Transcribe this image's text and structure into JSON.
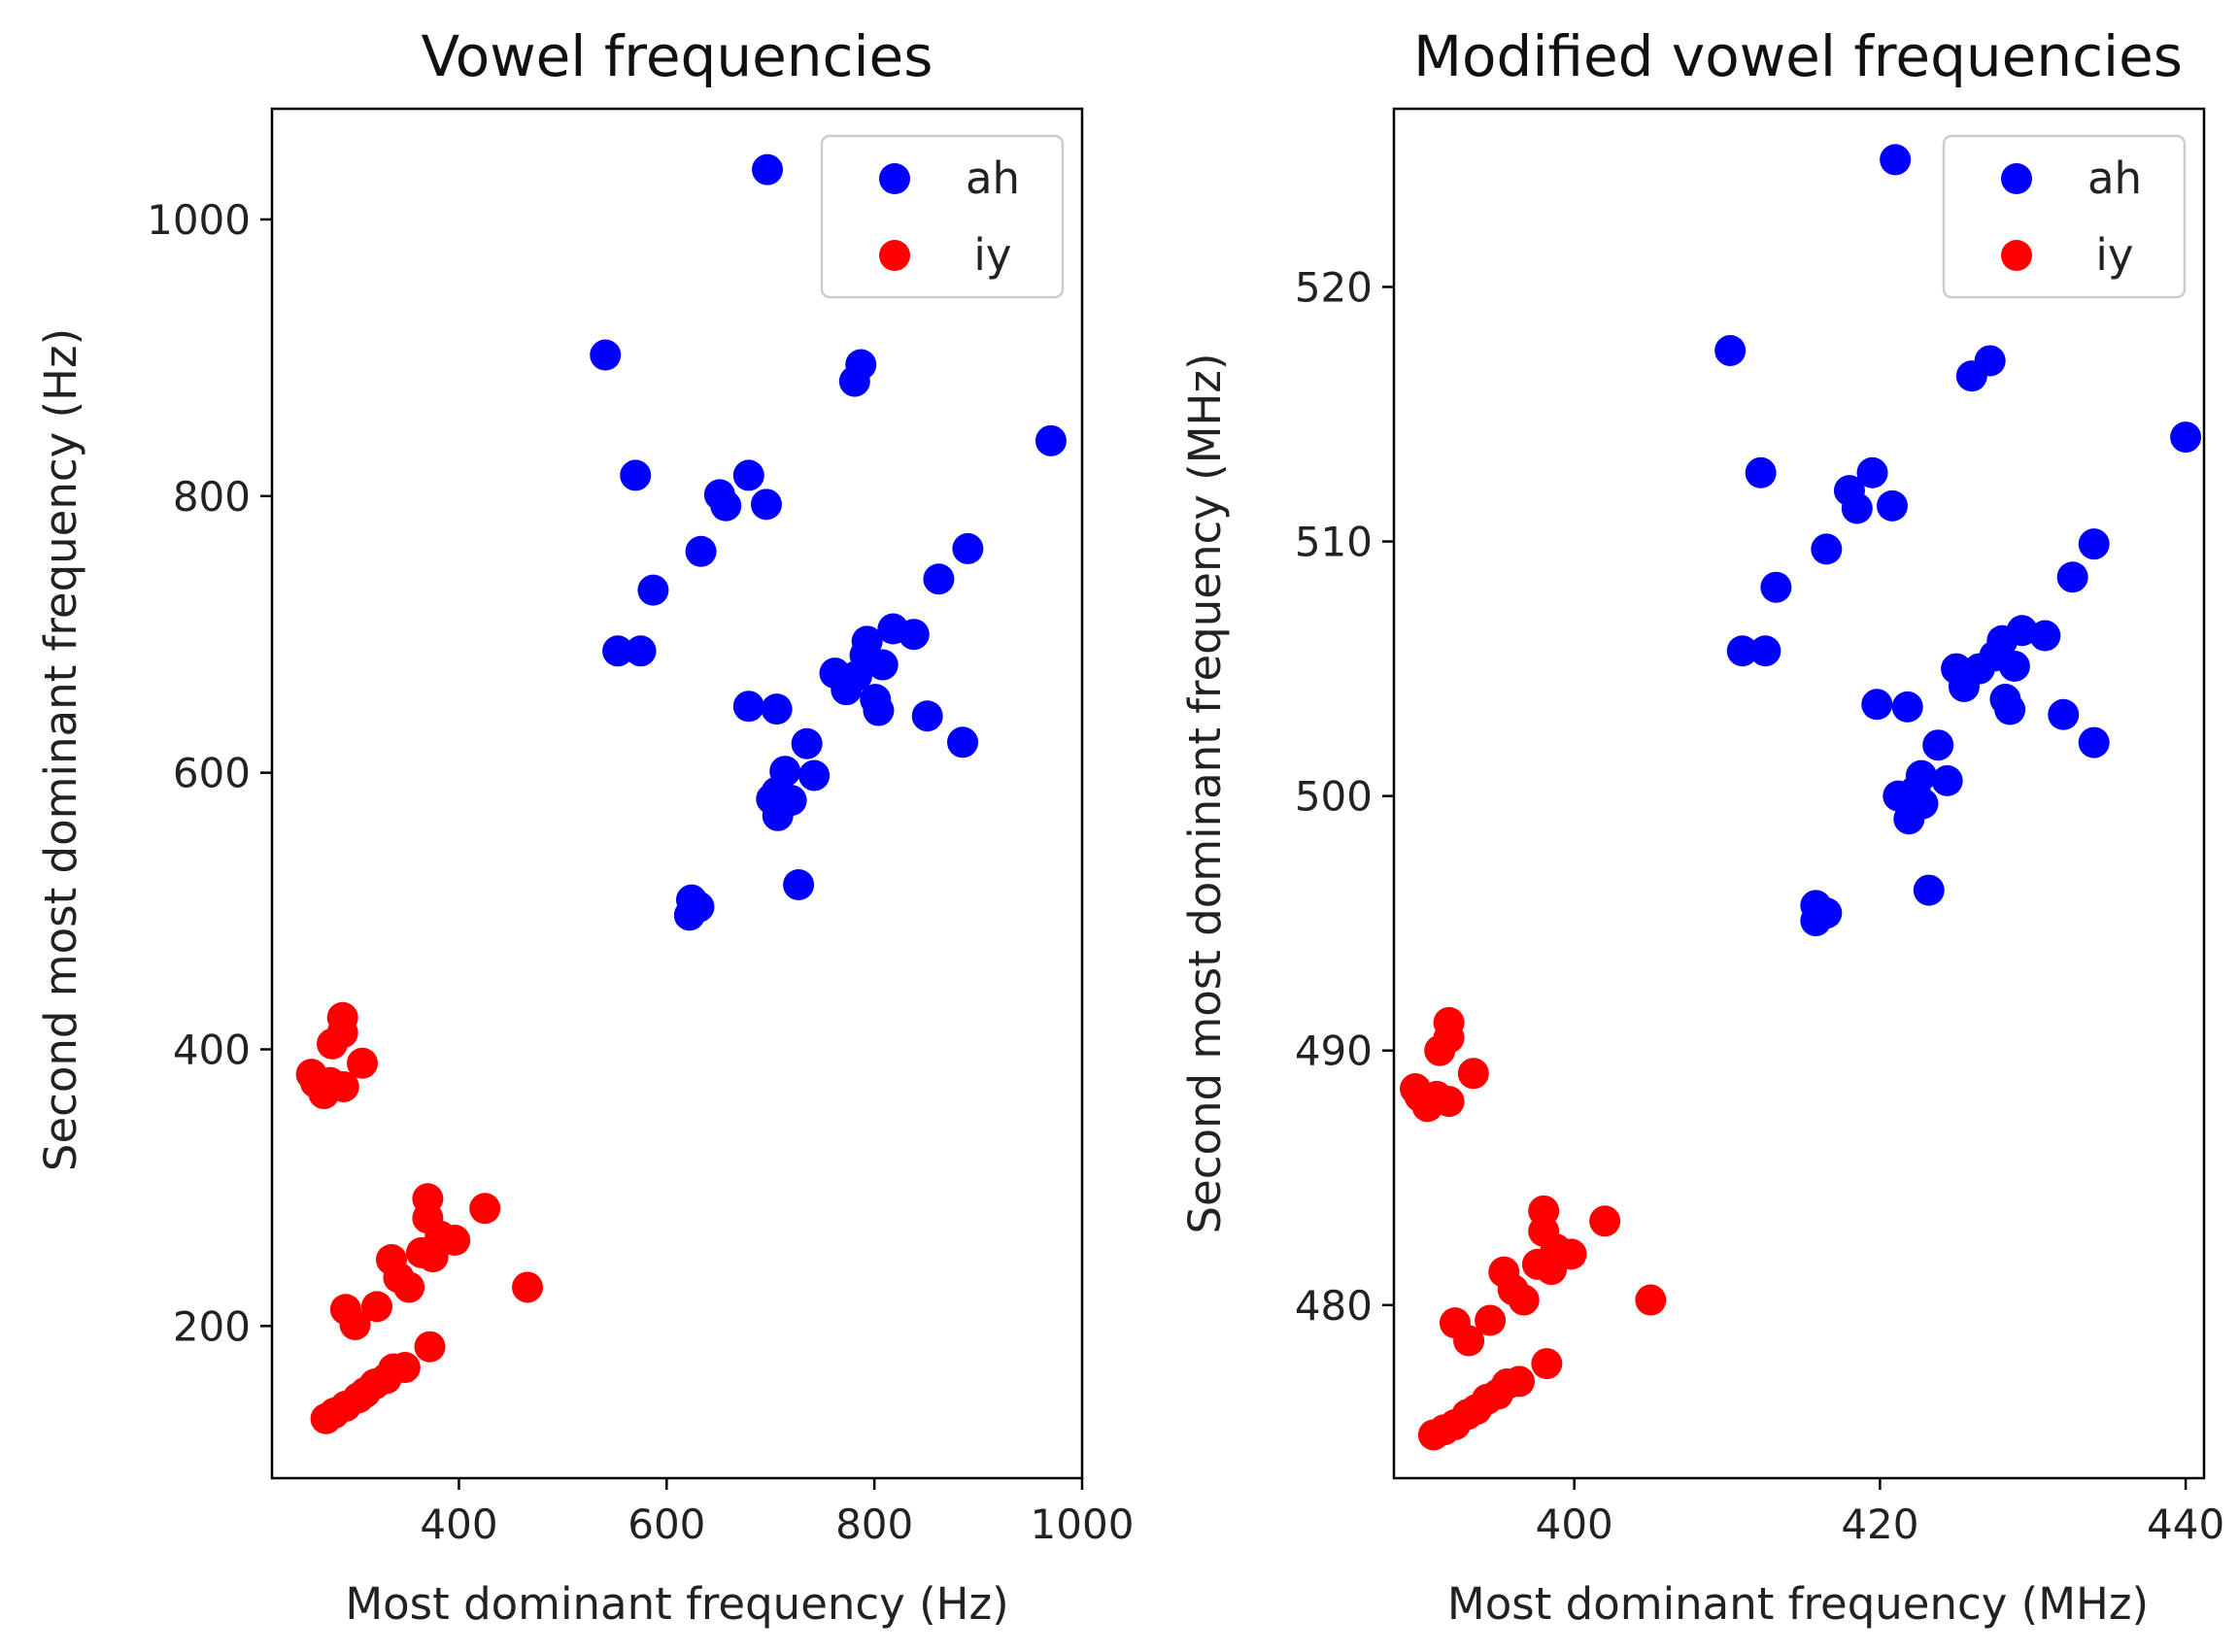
{
  "chart_data": [
    {
      "type": "scatter",
      "title": "Vowel frequencies",
      "xlabel": "Most dominant frequency (Hz)",
      "ylabel": "Second most dominant frequency (Hz)",
      "xlim": [
        220,
        1000
      ],
      "ylim": [
        90,
        1080
      ],
      "xticks": [
        400,
        600,
        800,
        1000
      ],
      "yticks": [
        200,
        400,
        600,
        800,
        1000
      ],
      "legend": "top-right",
      "series": [
        {
          "name": "ah",
          "color": "#0000ff",
          "points": [
            [
              697,
              1036
            ],
            [
              541,
              902
            ],
            [
              781,
              883
            ],
            [
              787,
              895
            ],
            [
              570,
              815
            ],
            [
              679,
              815
            ],
            [
              651,
              801
            ],
            [
              657,
              793
            ],
            [
              696,
              794
            ],
            [
              970,
              840
            ],
            [
              633,
              760
            ],
            [
              890,
              762
            ],
            [
              587,
              732
            ],
            [
              862,
              740
            ],
            [
              553,
              688
            ],
            [
              575,
              688
            ],
            [
              793,
              695
            ],
            [
              818,
              704
            ],
            [
              838,
              700
            ],
            [
              762,
              672
            ],
            [
              773,
              660
            ],
            [
              783,
              670
            ],
            [
              791,
              685
            ],
            [
              808,
              678
            ],
            [
              801,
              653
            ],
            [
              804,
              645
            ],
            [
              851,
              641
            ],
            [
              885,
              622
            ],
            [
              679,
              648
            ],
            [
              706,
              646
            ],
            [
              735,
              621
            ],
            [
              742,
              598
            ],
            [
              714,
              601
            ],
            [
              706,
              586
            ],
            [
              701,
              581
            ],
            [
              720,
              580
            ],
            [
              707,
              569
            ],
            [
              727,
              519
            ],
            [
              624,
              508
            ],
            [
              631,
              503
            ],
            [
              622,
              497
            ]
          ]
        },
        {
          "name": "iy",
          "color": "#ff0000",
          "points": [
            [
              288,
              423
            ],
            [
              278,
              404
            ],
            [
              288,
              412
            ],
            [
              307,
              390
            ],
            [
              258,
              382
            ],
            [
              262,
              376
            ],
            [
              276,
              376
            ],
            [
              289,
              373
            ],
            [
              270,
              368
            ],
            [
              370,
              292
            ],
            [
              370,
              278
            ],
            [
              425,
              285
            ],
            [
              382,
              265
            ],
            [
              396,
              262
            ],
            [
              335,
              248
            ],
            [
              364,
              253
            ],
            [
              375,
              250
            ],
            [
              342,
              235
            ],
            [
              352,
              228
            ],
            [
              466,
              228
            ],
            [
              291,
              212
            ],
            [
              321,
              214
            ],
            [
              300,
              201
            ],
            [
              372,
              185
            ],
            [
              337,
              169
            ],
            [
              348,
              170
            ],
            [
              330,
              162
            ],
            [
              319,
              158
            ],
            [
              310,
              152
            ],
            [
              303,
              148
            ],
            [
              291,
              142
            ],
            [
              280,
              137
            ],
            [
              272,
              133
            ]
          ]
        }
      ]
    },
    {
      "type": "scatter",
      "title": "Modified vowel frequencies",
      "xlabel": "Most dominant frequency (MHz)",
      "ylabel": "Second most dominant frequency (MHz)",
      "xlim": [
        388.2,
        441.2
      ],
      "ylim": [
        473.2,
        527.0
      ],
      "xticks": [
        400,
        420,
        440
      ],
      "yticks": [
        480,
        490,
        500,
        510,
        520
      ],
      "legend": "top-right",
      "series": [
        {
          "name": "ah",
          "color": "#0000ff",
          "points": [
            [
              421,
              525
            ],
            [
              410.2,
              517.5
            ],
            [
              426,
              516.5
            ],
            [
              427.2,
              517.1
            ],
            [
              412.2,
              512.7
            ],
            [
              419.5,
              512.7
            ],
            [
              418,
              512
            ],
            [
              418.5,
              511.3
            ],
            [
              420.8,
              511.4
            ],
            [
              440,
              514.1
            ],
            [
              416.5,
              509.7
            ],
            [
              434,
              509.9
            ],
            [
              413.2,
              508.2
            ],
            [
              432.6,
              508.6
            ],
            [
              411,
              505.7
            ],
            [
              412.5,
              505.7
            ],
            [
              428,
              506.1
            ],
            [
              429.3,
              506.5
            ],
            [
              430.8,
              506.3
            ],
            [
              425,
              505
            ],
            [
              425.5,
              504.3
            ],
            [
              426.5,
              505
            ],
            [
              427.5,
              505.5
            ],
            [
              428.8,
              505.1
            ],
            [
              428.2,
              503.8
            ],
            [
              428.5,
              503.4
            ],
            [
              432,
              503.2
            ],
            [
              434,
              502.1
            ],
            [
              419.8,
              503.6
            ],
            [
              421.8,
              503.5
            ],
            [
              423.8,
              502
            ],
            [
              424.4,
              500.6
            ],
            [
              422.7,
              500.8
            ],
            [
              422.3,
              500.2
            ],
            [
              421.2,
              500
            ],
            [
              422.8,
              499.7
            ],
            [
              421.9,
              499.1
            ],
            [
              423.2,
              496.3
            ],
            [
              415.8,
              495.7
            ],
            [
              416.5,
              495.4
            ],
            [
              415.8,
              495.1
            ]
          ]
        },
        {
          "name": "iy",
          "color": "#ff0000",
          "points": [
            [
              391.8,
              491.1
            ],
            [
              391.2,
              490
            ],
            [
              391.8,
              490.5
            ],
            [
              393.4,
              489.1
            ],
            [
              389.6,
              488.5
            ],
            [
              389.9,
              488.2
            ],
            [
              391,
              488.2
            ],
            [
              391.8,
              488
            ],
            [
              390.4,
              487.8
            ],
            [
              398,
              483.7
            ],
            [
              398,
              482.9
            ],
            [
              402,
              483.3
            ],
            [
              398.8,
              482.2
            ],
            [
              399.8,
              482
            ],
            [
              395.4,
              481.3
            ],
            [
              397.6,
              481.6
            ],
            [
              398.5,
              481.4
            ],
            [
              396,
              480.6
            ],
            [
              396.7,
              480.2
            ],
            [
              405,
              480.2
            ],
            [
              392.2,
              479.3
            ],
            [
              394.5,
              479.4
            ],
            [
              393.1,
              478.6
            ],
            [
              398.2,
              477.7
            ],
            [
              395.6,
              476.9
            ],
            [
              396.4,
              477
            ],
            [
              395,
              476.5
            ],
            [
              394.3,
              476.3
            ],
            [
              393.6,
              475.9
            ],
            [
              393,
              475.7
            ],
            [
              392.2,
              475.3
            ],
            [
              391.5,
              475.1
            ],
            [
              390.8,
              474.9
            ]
          ]
        }
      ]
    }
  ]
}
